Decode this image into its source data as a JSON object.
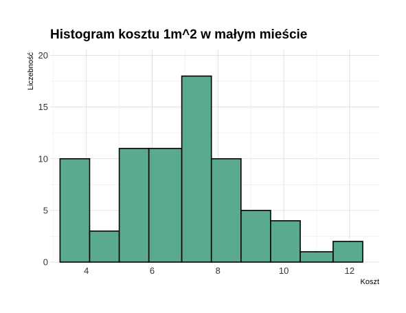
{
  "chart_data": {
    "type": "bar",
    "subtype": "histogram",
    "title": "Histogram kosztu 1m^2 w małym mieście",
    "xlabel": "Koszt",
    "ylabel": "Liczebność",
    "bins": [
      {
        "x0": 3.2,
        "x1": 4.1,
        "count": 10
      },
      {
        "x0": 4.1,
        "x1": 5.0,
        "count": 3
      },
      {
        "x0": 5.0,
        "x1": 5.9,
        "count": 11
      },
      {
        "x0": 5.9,
        "x1": 6.9,
        "count": 11
      },
      {
        "x0": 6.9,
        "x1": 7.8,
        "count": 18
      },
      {
        "x0": 7.8,
        "x1": 8.7,
        "count": 10
      },
      {
        "x0": 8.7,
        "x1": 9.6,
        "count": 5
      },
      {
        "x0": 9.6,
        "x1": 10.5,
        "count": 4
      },
      {
        "x0": 10.5,
        "x1": 11.5,
        "count": 1
      },
      {
        "x0": 11.5,
        "x1": 12.4,
        "count": 2
      }
    ],
    "xticks": [
      "4",
      "6",
      "8",
      "10",
      "12"
    ],
    "yticks": [
      "0",
      "5",
      "10",
      "15",
      "20"
    ],
    "xlim": [
      2.9,
      12.9
    ],
    "ylim": [
      0,
      20.5
    ],
    "bar_fill": "#5aaa8f",
    "bar_stroke": "#000000",
    "grid": true,
    "legend": "none"
  }
}
